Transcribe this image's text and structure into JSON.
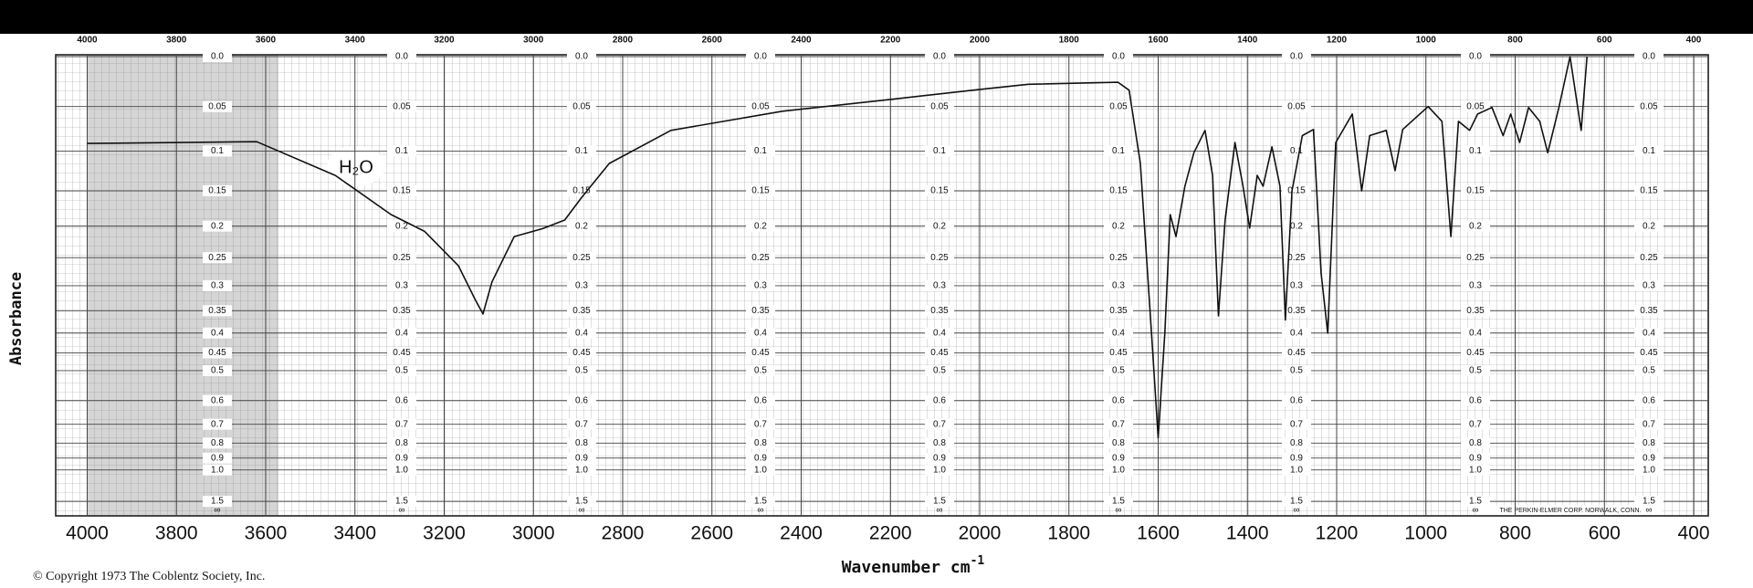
{
  "chart_data": {
    "type": "line",
    "y_label": "Absorbance",
    "x_label": "Wavenumber cm",
    "x_label_sup": "-1",
    "annotation": "H₂O",
    "copyright": "© Copyright 1973 The Coblentz Society, Inc.",
    "maker": "THE PERKIN-ELMER CORP. NORWALK, CONN.",
    "y_bottom_label": "∞",
    "yscale": "transmittance",
    "grid": true,
    "color": "#111111",
    "xlim": [
      4000,
      400
    ],
    "xticks": [
      4000,
      3800,
      3600,
      3400,
      3200,
      3000,
      2800,
      2600,
      2400,
      2200,
      2000,
      1800,
      1600,
      1400,
      1200,
      1000,
      800,
      600,
      400
    ],
    "ylim": [
      0,
      1.5
    ],
    "yticks": [
      {
        "value": 0,
        "label": "0.0"
      },
      0.05,
      0.1,
      0.15,
      0.2,
      0.25,
      0.3,
      0.35,
      0.4,
      0.45,
      0.5,
      0.6,
      0.7,
      0.8,
      0.9,
      {
        "value": 1,
        "label": "1.0"
      },
      1.5
    ],
    "x": [
      4000,
      3620,
      3444,
      3319,
      3244,
      3168,
      3131,
      3113,
      3093,
      3043,
      2980,
      2930,
      2893,
      2830,
      2692,
      2442,
      2191,
      2016,
      1891,
      1690,
      1665,
      1640,
      1615,
      1600,
      1585,
      1573,
      1560,
      1540,
      1520,
      1495,
      1478,
      1465,
      1450,
      1428,
      1410,
      1395,
      1378,
      1365,
      1345,
      1327,
      1315,
      1300,
      1277,
      1252,
      1235,
      1220,
      1202,
      1165,
      1144,
      1126,
      1089,
      1069,
      1052,
      995,
      964,
      944,
      927,
      902,
      884,
      852,
      827,
      810,
      790,
      770,
      745,
      727,
      702,
      677,
      652,
      639
    ],
    "values": [
      0.091,
      0.089,
      0.13,
      0.183,
      0.208,
      0.264,
      0.326,
      0.357,
      0.293,
      0.216,
      0.204,
      0.191,
      0.16,
      0.115,
      0.076,
      0.055,
      0.042,
      0.033,
      0.027,
      0.025,
      0.033,
      0.115,
      0.4,
      0.77,
      0.4,
      0.183,
      0.216,
      0.144,
      0.102,
      0.076,
      0.13,
      0.361,
      0.191,
      0.09,
      0.144,
      0.203,
      0.13,
      0.144,
      0.095,
      0.144,
      0.37,
      0.15,
      0.082,
      0.075,
      0.276,
      0.4,
      0.09,
      0.058,
      0.15,
      0.082,
      0.076,
      0.124,
      0.075,
      0.05,
      0.066,
      0.216,
      0.066,
      0.076,
      0.058,
      0.051,
      0.082,
      0.058,
      0.09,
      0.051,
      0.066,
      0.102,
      0.051,
      0,
      0.076,
      0
    ]
  }
}
